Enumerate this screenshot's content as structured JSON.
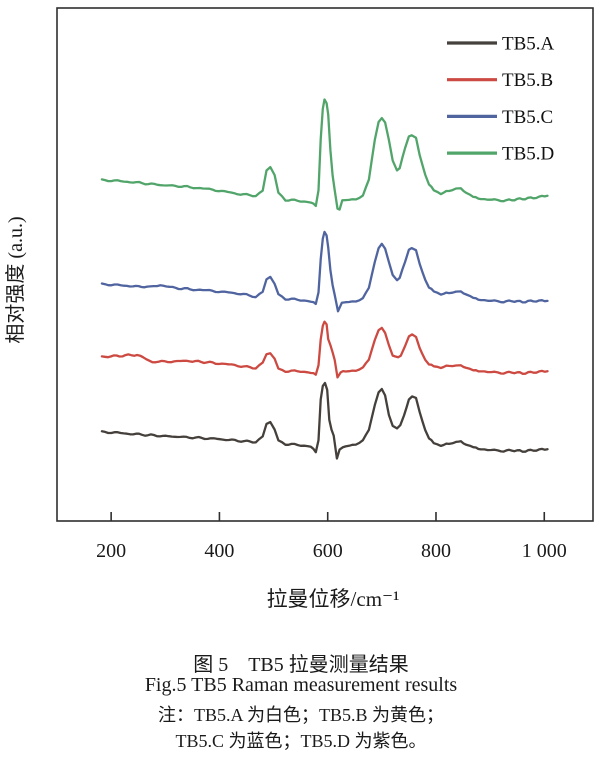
{
  "chart_data": {
    "type": "line",
    "title": "",
    "xlabel": "拉曼位移/cm⁻¹",
    "ylabel": "相对强度 (a.u.)",
    "xlim": [
      100,
      1090
    ],
    "ylim": [
      0,
      10
    ],
    "x_ticks": [
      200,
      400,
      600,
      800,
      1000
    ],
    "x_tick_labels": [
      "200",
      "400",
      "600",
      "800",
      "1 000"
    ],
    "grid": false,
    "legend_position": "top-right-inside",
    "y_units": "arbitrary (offset stacked spectra)",
    "series": [
      {
        "name": "TB5.A",
        "color": "#45403b",
        "points": [
          [
            183,
            1.74
          ],
          [
            235,
            1.7
          ],
          [
            290,
            1.66
          ],
          [
            345,
            1.63
          ],
          [
            395,
            1.6
          ],
          [
            440,
            1.56
          ],
          [
            467,
            1.54
          ],
          [
            480,
            1.66
          ],
          [
            487,
            1.9
          ],
          [
            494,
            1.93
          ],
          [
            502,
            1.8
          ],
          [
            509,
            1.58
          ],
          [
            522,
            1.5
          ],
          [
            550,
            1.48
          ],
          [
            569,
            1.46
          ],
          [
            578,
            1.34
          ],
          [
            583,
            1.58
          ],
          [
            587,
            2.36
          ],
          [
            591,
            2.65
          ],
          [
            595,
            2.69
          ],
          [
            599,
            2.55
          ],
          [
            603,
            1.97
          ],
          [
            607,
            1.77
          ],
          [
            611,
            1.68
          ],
          [
            617,
            1.23
          ],
          [
            622,
            1.38
          ],
          [
            633,
            1.46
          ],
          [
            652,
            1.5
          ],
          [
            665,
            1.58
          ],
          [
            676,
            1.77
          ],
          [
            687,
            2.26
          ],
          [
            694,
            2.51
          ],
          [
            700,
            2.59
          ],
          [
            706,
            2.46
          ],
          [
            713,
            2.07
          ],
          [
            720,
            1.87
          ],
          [
            728,
            1.81
          ],
          [
            734,
            1.87
          ],
          [
            741,
            2.07
          ],
          [
            750,
            2.36
          ],
          [
            756,
            2.42
          ],
          [
            763,
            2.4
          ],
          [
            770,
            2.12
          ],
          [
            780,
            1.77
          ],
          [
            787,
            1.62
          ],
          [
            796,
            1.52
          ],
          [
            809,
            1.48
          ],
          [
            824,
            1.5
          ],
          [
            837,
            1.55
          ],
          [
            846,
            1.54
          ],
          [
            856,
            1.5
          ],
          [
            869,
            1.44
          ],
          [
            883,
            1.4
          ],
          [
            902,
            1.38
          ],
          [
            920,
            1.36
          ],
          [
            940,
            1.38
          ],
          [
            960,
            1.36
          ],
          [
            980,
            1.38
          ],
          [
            1006,
            1.4
          ]
        ]
      },
      {
        "name": "TB5.B",
        "color": "#cc4a41",
        "points": [
          [
            183,
            3.2
          ],
          [
            248,
            3.24
          ],
          [
            276,
            3.1
          ],
          [
            345,
            3.12
          ],
          [
            393,
            3.08
          ],
          [
            440,
            3.02
          ],
          [
            467,
            2.98
          ],
          [
            480,
            3.1
          ],
          [
            487,
            3.26
          ],
          [
            494,
            3.27
          ],
          [
            502,
            3.18
          ],
          [
            509,
            2.98
          ],
          [
            522,
            2.92
          ],
          [
            550,
            2.92
          ],
          [
            569,
            2.9
          ],
          [
            578,
            2.85
          ],
          [
            583,
            3.04
          ],
          [
            587,
            3.53
          ],
          [
            591,
            3.82
          ],
          [
            594,
            3.88
          ],
          [
            598,
            3.84
          ],
          [
            601,
            3.53
          ],
          [
            605,
            3.43
          ],
          [
            609,
            3.29
          ],
          [
            613,
            3.14
          ],
          [
            618,
            2.81
          ],
          [
            624,
            2.9
          ],
          [
            633,
            2.92
          ],
          [
            652,
            2.94
          ],
          [
            665,
            3.0
          ],
          [
            676,
            3.14
          ],
          [
            687,
            3.53
          ],
          [
            694,
            3.72
          ],
          [
            700,
            3.78
          ],
          [
            706,
            3.68
          ],
          [
            713,
            3.43
          ],
          [
            720,
            3.24
          ],
          [
            730,
            3.18
          ],
          [
            735,
            3.22
          ],
          [
            743,
            3.41
          ],
          [
            750,
            3.59
          ],
          [
            756,
            3.63
          ],
          [
            763,
            3.59
          ],
          [
            770,
            3.37
          ],
          [
            780,
            3.14
          ],
          [
            787,
            3.06
          ],
          [
            796,
            3.02
          ],
          [
            809,
            3.0
          ],
          [
            824,
            3.02
          ],
          [
            837,
            3.04
          ],
          [
            846,
            3.02
          ],
          [
            856,
            3.0
          ],
          [
            869,
            2.94
          ],
          [
            883,
            2.92
          ],
          [
            902,
            2.9
          ],
          [
            920,
            2.88
          ],
          [
            940,
            2.9
          ],
          [
            960,
            2.88
          ],
          [
            980,
            2.9
          ],
          [
            1006,
            2.92
          ]
        ]
      },
      {
        "name": "TB5.C",
        "color": "#5064a0",
        "points": [
          [
            183,
            4.62
          ],
          [
            235,
            4.58
          ],
          [
            272,
            4.56
          ],
          [
            291,
            4.6
          ],
          [
            319,
            4.54
          ],
          [
            346,
            4.52
          ],
          [
            393,
            4.48
          ],
          [
            439,
            4.43
          ],
          [
            467,
            4.37
          ],
          [
            480,
            4.48
          ],
          [
            487,
            4.72
          ],
          [
            494,
            4.76
          ],
          [
            502,
            4.64
          ],
          [
            509,
            4.43
          ],
          [
            522,
            4.33
          ],
          [
            550,
            4.31
          ],
          [
            569,
            4.29
          ],
          [
            578,
            4.23
          ],
          [
            583,
            4.46
          ],
          [
            587,
            5.09
          ],
          [
            591,
            5.52
          ],
          [
            594,
            5.63
          ],
          [
            598,
            5.57
          ],
          [
            601,
            5.32
          ],
          [
            605,
            4.89
          ],
          [
            609,
            4.6
          ],
          [
            613,
            4.41
          ],
          [
            619,
            4.09
          ],
          [
            626,
            4.25
          ],
          [
            633,
            4.27
          ],
          [
            652,
            4.29
          ],
          [
            665,
            4.35
          ],
          [
            676,
            4.54
          ],
          [
            687,
            5.05
          ],
          [
            694,
            5.32
          ],
          [
            700,
            5.42
          ],
          [
            706,
            5.32
          ],
          [
            713,
            5.05
          ],
          [
            720,
            4.81
          ],
          [
            728,
            4.7
          ],
          [
            733,
            4.74
          ],
          [
            743,
            5.05
          ],
          [
            750,
            5.28
          ],
          [
            755,
            5.32
          ],
          [
            763,
            5.28
          ],
          [
            770,
            5.01
          ],
          [
            780,
            4.7
          ],
          [
            787,
            4.56
          ],
          [
            796,
            4.48
          ],
          [
            809,
            4.43
          ],
          [
            824,
            4.44
          ],
          [
            837,
            4.48
          ],
          [
            846,
            4.46
          ],
          [
            856,
            4.43
          ],
          [
            869,
            4.35
          ],
          [
            883,
            4.31
          ],
          [
            902,
            4.29
          ],
          [
            920,
            4.27
          ],
          [
            940,
            4.29
          ],
          [
            960,
            4.27
          ],
          [
            980,
            4.29
          ],
          [
            1006,
            4.29
          ]
        ]
      },
      {
        "name": "TB5.D",
        "color": "#52a56a",
        "points": [
          [
            183,
            6.65
          ],
          [
            235,
            6.61
          ],
          [
            291,
            6.55
          ],
          [
            346,
            6.51
          ],
          [
            393,
            6.45
          ],
          [
            439,
            6.37
          ],
          [
            467,
            6.34
          ],
          [
            480,
            6.45
          ],
          [
            487,
            6.84
          ],
          [
            494,
            6.9
          ],
          [
            502,
            6.76
          ],
          [
            509,
            6.41
          ],
          [
            522,
            6.26
          ],
          [
            550,
            6.24
          ],
          [
            569,
            6.22
          ],
          [
            578,
            6.14
          ],
          [
            583,
            6.45
          ],
          [
            587,
            7.43
          ],
          [
            591,
            8.05
          ],
          [
            594,
            8.21
          ],
          [
            598,
            8.15
          ],
          [
            601,
            7.91
          ],
          [
            605,
            7.23
          ],
          [
            609,
            6.74
          ],
          [
            613,
            6.45
          ],
          [
            618,
            6.1
          ],
          [
            622,
            6.06
          ],
          [
            627,
            6.24
          ],
          [
            633,
            6.26
          ],
          [
            652,
            6.28
          ],
          [
            665,
            6.35
          ],
          [
            676,
            6.65
          ],
          [
            687,
            7.43
          ],
          [
            694,
            7.78
          ],
          [
            700,
            7.87
          ],
          [
            706,
            7.78
          ],
          [
            713,
            7.43
          ],
          [
            720,
            7.04
          ],
          [
            728,
            6.84
          ],
          [
            733,
            6.88
          ],
          [
            743,
            7.27
          ],
          [
            750,
            7.49
          ],
          [
            755,
            7.52
          ],
          [
            763,
            7.47
          ],
          [
            770,
            7.13
          ],
          [
            780,
            6.75
          ],
          [
            787,
            6.57
          ],
          [
            796,
            6.45
          ],
          [
            809,
            6.39
          ],
          [
            824,
            6.43
          ],
          [
            837,
            6.49
          ],
          [
            846,
            6.47
          ],
          [
            856,
            6.41
          ],
          [
            869,
            6.32
          ],
          [
            883,
            6.28
          ],
          [
            902,
            6.26
          ],
          [
            920,
            6.24
          ],
          [
            940,
            6.26
          ],
          [
            960,
            6.28
          ],
          [
            980,
            6.3
          ],
          [
            1006,
            6.34
          ]
        ]
      }
    ]
  },
  "caption": {
    "line1": "图 5　TB5 拉曼测量结果",
    "line2": "Fig.5 TB5 Raman measurement results",
    "line3": "注：TB5.A 为白色；TB5.B 为黄色；",
    "line4": "TB5.C 为蓝色；TB5.D 为紫色。"
  }
}
